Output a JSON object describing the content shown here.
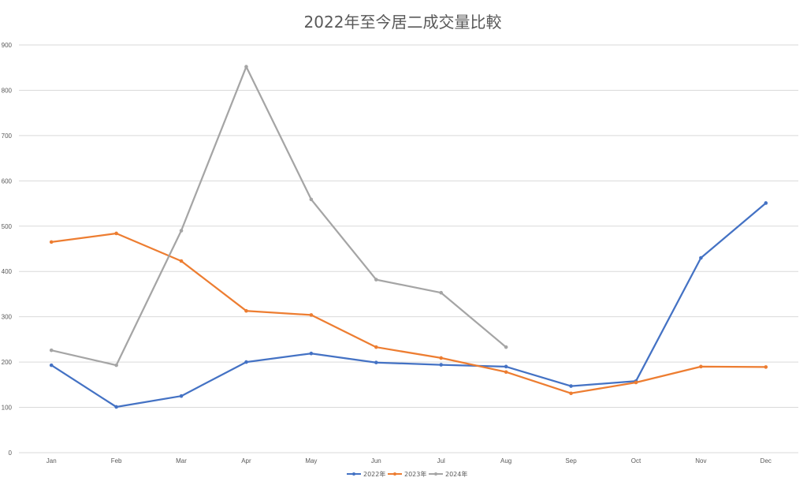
{
  "chart_data": {
    "type": "line",
    "title": "2022年至今居二成交量比較",
    "xlabel": "",
    "ylabel": "",
    "categories": [
      "Jan",
      "Feb",
      "Mar",
      "Apr",
      "May",
      "Jun",
      "Jul",
      "Aug",
      "Sep",
      "Oct",
      "Nov",
      "Dec"
    ],
    "ylim": [
      0,
      900
    ],
    "yticks": [
      0,
      100,
      200,
      300,
      400,
      500,
      600,
      700,
      800,
      900
    ],
    "grid": true,
    "legend_position": "bottom",
    "series": [
      {
        "name": "2022年",
        "color": "#4472C4",
        "values": [
          193,
          101,
          125,
          200,
          219,
          199,
          194,
          190,
          147,
          158,
          430,
          551
        ]
      },
      {
        "name": "2023年",
        "color": "#ED7D31",
        "values": [
          465,
          484,
          423,
          313,
          304,
          233,
          209,
          178,
          131,
          155,
          190,
          189
        ]
      },
      {
        "name": "2024年",
        "color": "#A5A5A5",
        "values": [
          226,
          193,
          490,
          852,
          559,
          382,
          353,
          233,
          null,
          null,
          null,
          null
        ]
      }
    ]
  }
}
